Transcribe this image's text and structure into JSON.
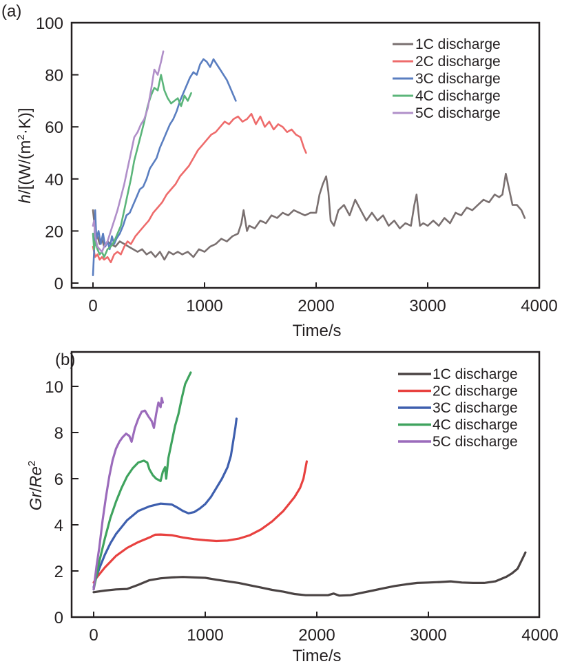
{
  "chart_data": [
    {
      "type": "line",
      "panel_label": "(a)",
      "title": "",
      "xlabel": "Time/s",
      "ylabel_parts": {
        "italic": "h",
        "rest": "/[(W/(m",
        "sup": "2",
        "tail": "·K)]"
      },
      "ylabel": "h/[(W/(m²·K)]",
      "xlim": [
        -200,
        4000
      ],
      "ylim": [
        -2,
        100
      ],
      "xticks": [
        0,
        1000,
        2000,
        3000,
        4000
      ],
      "yticks": [
        0,
        20,
        40,
        60,
        80,
        100
      ],
      "grid": false,
      "legend_position": "top-right",
      "series": [
        {
          "name": "1C discharge",
          "color": "#7a7070",
          "x": [
            0,
            20,
            40,
            60,
            80,
            100,
            130,
            160,
            200,
            240,
            280,
            320,
            360,
            400,
            440,
            480,
            520,
            560,
            600,
            640,
            680,
            720,
            760,
            800,
            850,
            900,
            950,
            1000,
            1050,
            1100,
            1150,
            1200,
            1250,
            1300,
            1330,
            1350,
            1380,
            1400,
            1450,
            1500,
            1550,
            1600,
            1650,
            1700,
            1750,
            1800,
            1850,
            1900,
            1950,
            2000,
            2030,
            2060,
            2090,
            2110,
            2130,
            2160,
            2200,
            2250,
            2300,
            2350,
            2400,
            2450,
            2500,
            2550,
            2600,
            2650,
            2700,
            2750,
            2800,
            2850,
            2880,
            2900,
            2930,
            2960,
            3000,
            3050,
            3100,
            3150,
            3200,
            3250,
            3300,
            3350,
            3400,
            3450,
            3500,
            3550,
            3600,
            3640,
            3670,
            3700,
            3730,
            3760,
            3800,
            3840,
            3870
          ],
          "y": [
            28,
            20,
            18,
            15,
            17,
            14,
            16,
            15,
            14,
            16,
            15,
            14,
            13,
            12,
            13,
            11,
            12,
            10,
            12,
            9,
            12,
            11,
            12,
            11,
            12,
            10,
            13,
            12,
            14,
            15,
            17,
            16,
            18,
            19,
            23,
            28,
            20,
            22,
            21,
            24,
            23,
            26,
            25,
            27,
            26,
            28,
            27,
            26,
            27,
            27,
            34,
            38,
            41,
            35,
            24,
            22,
            28,
            30,
            26,
            32,
            28,
            24,
            27,
            24,
            26,
            22,
            24,
            21,
            23,
            22,
            30,
            34,
            22,
            23,
            22,
            24,
            22,
            25,
            23,
            27,
            26,
            29,
            28,
            30,
            32,
            31,
            34,
            33,
            34,
            42,
            36,
            30,
            30,
            28,
            25
          ]
        },
        {
          "name": "2C discharge",
          "color": "#ee6b6b",
          "x": [
            0,
            20,
            40,
            60,
            80,
            100,
            130,
            160,
            190,
            220,
            250,
            280,
            310,
            340,
            380,
            420,
            460,
            500,
            540,
            580,
            620,
            660,
            700,
            740,
            780,
            820,
            860,
            900,
            940,
            980,
            1020,
            1060,
            1100,
            1140,
            1180,
            1220,
            1260,
            1300,
            1340,
            1380,
            1420,
            1460,
            1500,
            1540,
            1580,
            1620,
            1660,
            1700,
            1740,
            1780,
            1820,
            1860,
            1890,
            1910
          ],
          "y": [
            14,
            10,
            11,
            9,
            10,
            9,
            10,
            8,
            11,
            12,
            11,
            14,
            16,
            15,
            18,
            20,
            22,
            24,
            27,
            29,
            31,
            34,
            36,
            38,
            41,
            43,
            45,
            48,
            51,
            53,
            55,
            57,
            58,
            60,
            62,
            61,
            63,
            64,
            62,
            63,
            65,
            61,
            64,
            60,
            62,
            59,
            61,
            60,
            58,
            59,
            57,
            56,
            52,
            50
          ]
        },
        {
          "name": "3C discharge",
          "color": "#5a7ec0",
          "x": [
            0,
            10,
            20,
            30,
            50,
            70,
            90,
            110,
            130,
            150,
            170,
            190,
            210,
            240,
            270,
            300,
            330,
            360,
            390,
            420,
            450,
            480,
            510,
            540,
            570,
            600,
            630,
            660,
            690,
            720,
            750,
            780,
            810,
            840,
            870,
            900,
            930,
            960,
            990,
            1020,
            1050,
            1080,
            1110,
            1140,
            1170,
            1200,
            1230,
            1260,
            1280
          ],
          "y": [
            3,
            12,
            28,
            17,
            20,
            15,
            19,
            14,
            16,
            13,
            18,
            15,
            17,
            19,
            22,
            26,
            27,
            30,
            33,
            36,
            37,
            40,
            44,
            46,
            48,
            52,
            55,
            58,
            61,
            63,
            66,
            70,
            73,
            76,
            79,
            81,
            80,
            84,
            86,
            85,
            83,
            86,
            84,
            82,
            80,
            78,
            75,
            72,
            70
          ]
        },
        {
          "name": "4C discharge",
          "color": "#5bb57a",
          "x": [
            0,
            10,
            20,
            40,
            60,
            80,
            100,
            130,
            160,
            190,
            220,
            250,
            280,
            310,
            340,
            370,
            400,
            430,
            460,
            490,
            520,
            550,
            580,
            610,
            640,
            670,
            700,
            730,
            760,
            790,
            820,
            850,
            880
          ],
          "y": [
            19,
            13,
            16,
            13,
            11,
            12,
            10,
            13,
            14,
            16,
            19,
            22,
            28,
            34,
            40,
            47,
            52,
            57,
            62,
            68,
            72,
            75,
            74,
            80,
            74,
            71,
            69,
            70,
            71,
            68,
            72,
            70,
            73
          ]
        },
        {
          "name": "5C discharge",
          "color": "#b08fc9",
          "x": [
            0,
            10,
            20,
            40,
            60,
            80,
            100,
            130,
            160,
            190,
            220,
            250,
            280,
            310,
            340,
            370,
            400,
            430,
            460,
            490,
            520,
            550,
            580,
            610,
            630
          ],
          "y": [
            22,
            24,
            18,
            14,
            13,
            12,
            14,
            16,
            20,
            24,
            28,
            33,
            38,
            44,
            50,
            56,
            58,
            61,
            63,
            67,
            74,
            82,
            80,
            85,
            89
          ]
        }
      ],
      "legend": [
        "1C discharge",
        "2C discharge",
        "3C discharge",
        "4C discharge",
        "5C discharge"
      ]
    },
    {
      "type": "line",
      "panel_label": "(b)",
      "title": "",
      "xlabel": "Time/s",
      "ylabel_parts": {
        "italic1": "Gr",
        "sep": "/",
        "italic2": "Re",
        "sup": "2"
      },
      "ylabel": "Gr/Re²",
      "xlim": [
        -200,
        4000
      ],
      "ylim": [
        0,
        11.5
      ],
      "xticks": [
        0,
        1000,
        2000,
        3000,
        4000
      ],
      "yticks": [
        0,
        2,
        4,
        6,
        8,
        10
      ],
      "grid": false,
      "legend_position": "top-right",
      "series": [
        {
          "name": "1C discharge",
          "color": "#4a4343",
          "x": [
            0,
            100,
            200,
            300,
            400,
            500,
            600,
            700,
            800,
            900,
            1000,
            1100,
            1200,
            1300,
            1400,
            1500,
            1600,
            1700,
            1800,
            1900,
            2000,
            2100,
            2150,
            2200,
            2300,
            2400,
            2500,
            2600,
            2700,
            2800,
            2900,
            3000,
            3100,
            3200,
            3300,
            3400,
            3500,
            3600,
            3700,
            3750,
            3800,
            3850,
            3870
          ],
          "y": [
            1.08,
            1.15,
            1.2,
            1.22,
            1.4,
            1.6,
            1.68,
            1.72,
            1.74,
            1.72,
            1.7,
            1.62,
            1.55,
            1.48,
            1.38,
            1.28,
            1.18,
            1.1,
            1.0,
            0.95,
            0.95,
            0.95,
            1.02,
            0.93,
            0.95,
            1.05,
            1.15,
            1.25,
            1.35,
            1.42,
            1.48,
            1.5,
            1.52,
            1.55,
            1.5,
            1.48,
            1.48,
            1.55,
            1.75,
            1.9,
            2.1,
            2.6,
            2.8
          ]
        },
        {
          "name": "2C discharge",
          "color": "#e8413f",
          "x": [
            0,
            25,
            50,
            100,
            150,
            200,
            300,
            400,
            500,
            550,
            600,
            700,
            800,
            900,
            1000,
            1100,
            1200,
            1300,
            1400,
            1500,
            1600,
            1700,
            1750,
            1800,
            1850,
            1880,
            1900,
            1910
          ],
          "y": [
            1.5,
            1.7,
            1.85,
            2.15,
            2.4,
            2.65,
            3.0,
            3.25,
            3.45,
            3.57,
            3.58,
            3.55,
            3.45,
            3.38,
            3.33,
            3.3,
            3.32,
            3.4,
            3.55,
            3.8,
            4.15,
            4.6,
            4.9,
            5.2,
            5.6,
            6.0,
            6.5,
            6.75
          ]
        },
        {
          "name": "3C discharge",
          "color": "#3e5fae",
          "x": [
            0,
            25,
            50,
            100,
            150,
            200,
            300,
            400,
            500,
            600,
            700,
            750,
            800,
            850,
            900,
            950,
            1000,
            1050,
            1100,
            1150,
            1200,
            1230,
            1250,
            1270,
            1280
          ],
          "y": [
            1.3,
            1.75,
            2.1,
            2.7,
            3.2,
            3.6,
            4.2,
            4.6,
            4.8,
            4.92,
            4.88,
            4.75,
            4.6,
            4.5,
            4.55,
            4.7,
            4.9,
            5.2,
            5.6,
            6.0,
            6.5,
            7.0,
            7.6,
            8.2,
            8.6
          ]
        },
        {
          "name": "4C discharge",
          "color": "#3fa35e",
          "x": [
            0,
            25,
            50,
            100,
            150,
            200,
            250,
            300,
            350,
            400,
            450,
            480,
            500,
            530,
            560,
            600,
            620,
            640,
            650,
            670,
            700,
            730,
            760,
            790,
            820,
            850,
            870
          ],
          "y": [
            1.2,
            1.8,
            2.4,
            3.4,
            4.3,
            5.0,
            5.6,
            6.1,
            6.45,
            6.7,
            6.78,
            6.7,
            6.4,
            6.15,
            6.0,
            5.9,
            6.3,
            6.5,
            6.0,
            6.9,
            7.6,
            8.3,
            8.8,
            9.5,
            10.1,
            10.4,
            10.6
          ]
        },
        {
          "name": "5C discharge",
          "color": "#9b6bbb",
          "x": [
            0,
            25,
            50,
            80,
            110,
            140,
            170,
            200,
            230,
            260,
            290,
            320,
            340,
            370,
            400,
            430,
            460,
            490,
            520,
            540,
            560,
            580,
            600,
            610,
            620
          ],
          "y": [
            1.2,
            2.2,
            3.0,
            4.2,
            5.2,
            6.1,
            6.8,
            7.3,
            7.6,
            7.8,
            7.95,
            7.85,
            7.6,
            8.2,
            8.6,
            8.9,
            8.95,
            8.7,
            8.5,
            8.2,
            8.8,
            9.3,
            9.1,
            9.5,
            9.3
          ]
        }
      ],
      "legend": [
        "1C discharge",
        "2C discharge",
        "3C discharge",
        "4C discharge",
        "5C discharge"
      ]
    }
  ]
}
